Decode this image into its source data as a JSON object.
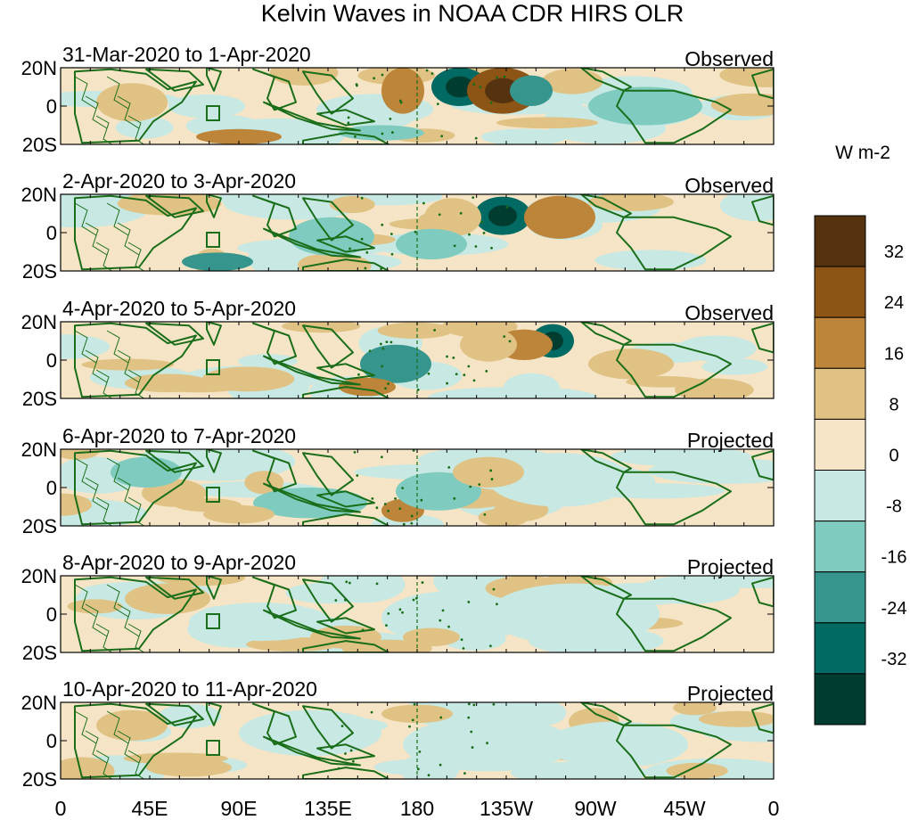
{
  "title": "Kelvin Waves in NOAA CDR HIRS OLR",
  "colorbar": {
    "units": "W m-2",
    "tick_labels": [
      "32",
      "24",
      "16",
      "8",
      "0",
      "-8",
      "-16",
      "-24",
      "-32"
    ],
    "colors": [
      "#553311",
      "#8c5415",
      "#bd8539",
      "#e0c384",
      "#f5e5c6",
      "#c7e8e3",
      "#7fcbbf",
      "#36958c",
      "#006a63",
      "#003c30"
    ],
    "levels": [
      -32,
      -24,
      -16,
      -8,
      0,
      8,
      16,
      24,
      32
    ]
  },
  "x_axis_ticks": [
    "0",
    "45E",
    "90E",
    "135E",
    "180",
    "135W",
    "90W",
    "45W",
    "0"
  ],
  "y_axis_ticks": [
    "20N",
    "0",
    "20S"
  ],
  "panels": [
    {
      "date_range": "31-Mar-2020 to 1-Apr-2020",
      "status": "Observed"
    },
    {
      "date_range": "2-Apr-2020 to 3-Apr-2020",
      "status": "Observed"
    },
    {
      "date_range": "4-Apr-2020 to 5-Apr-2020",
      "status": "Observed"
    },
    {
      "date_range": "6-Apr-2020 to 7-Apr-2020",
      "status": "Projected"
    },
    {
      "date_range": "8-Apr-2020 to 9-Apr-2020",
      "status": "Projected"
    },
    {
      "date_range": "10-Apr-2020 to 11-Apr-2020",
      "status": "Projected"
    }
  ],
  "map": {
    "longitude_range": [
      0,
      360
    ],
    "latitude_range": [
      -20,
      20
    ],
    "reference_line": "180",
    "coastline_color": "#1a6e1a"
  }
}
